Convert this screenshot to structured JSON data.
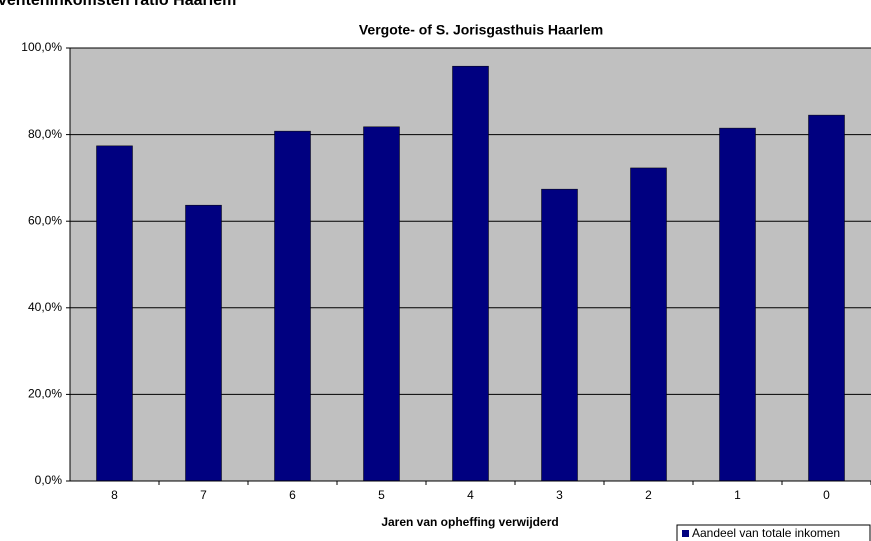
{
  "chart_data": {
    "type": "bar",
    "header": "venteninkomsten ratio Haarlem",
    "title": "Vergote- of S. Jorisgasthuis Haarlem",
    "xlabel": "Jaren van opheffing verwijderd",
    "categories": [
      "8",
      "7",
      "6",
      "5",
      "4",
      "3",
      "2",
      "1",
      "0"
    ],
    "series": [
      {
        "name": "Aandeel van totale inkomen",
        "color": "#000080",
        "values": [
          77.4,
          63.7,
          80.8,
          81.8,
          95.8,
          67.4,
          72.3,
          81.5,
          84.5
        ]
      }
    ],
    "ylim": [
      0,
      100
    ],
    "yticks": [
      {
        "value": 0,
        "label": "0,0%"
      },
      {
        "value": 20,
        "label": "20,0%"
      },
      {
        "value": 40,
        "label": "40,0%"
      },
      {
        "value": 60,
        "label": "60,0%"
      },
      {
        "value": 80,
        "label": "80,0%"
      },
      {
        "value": 100,
        "label": "100,0%"
      }
    ],
    "grid": true,
    "legend": "bottom-right"
  }
}
